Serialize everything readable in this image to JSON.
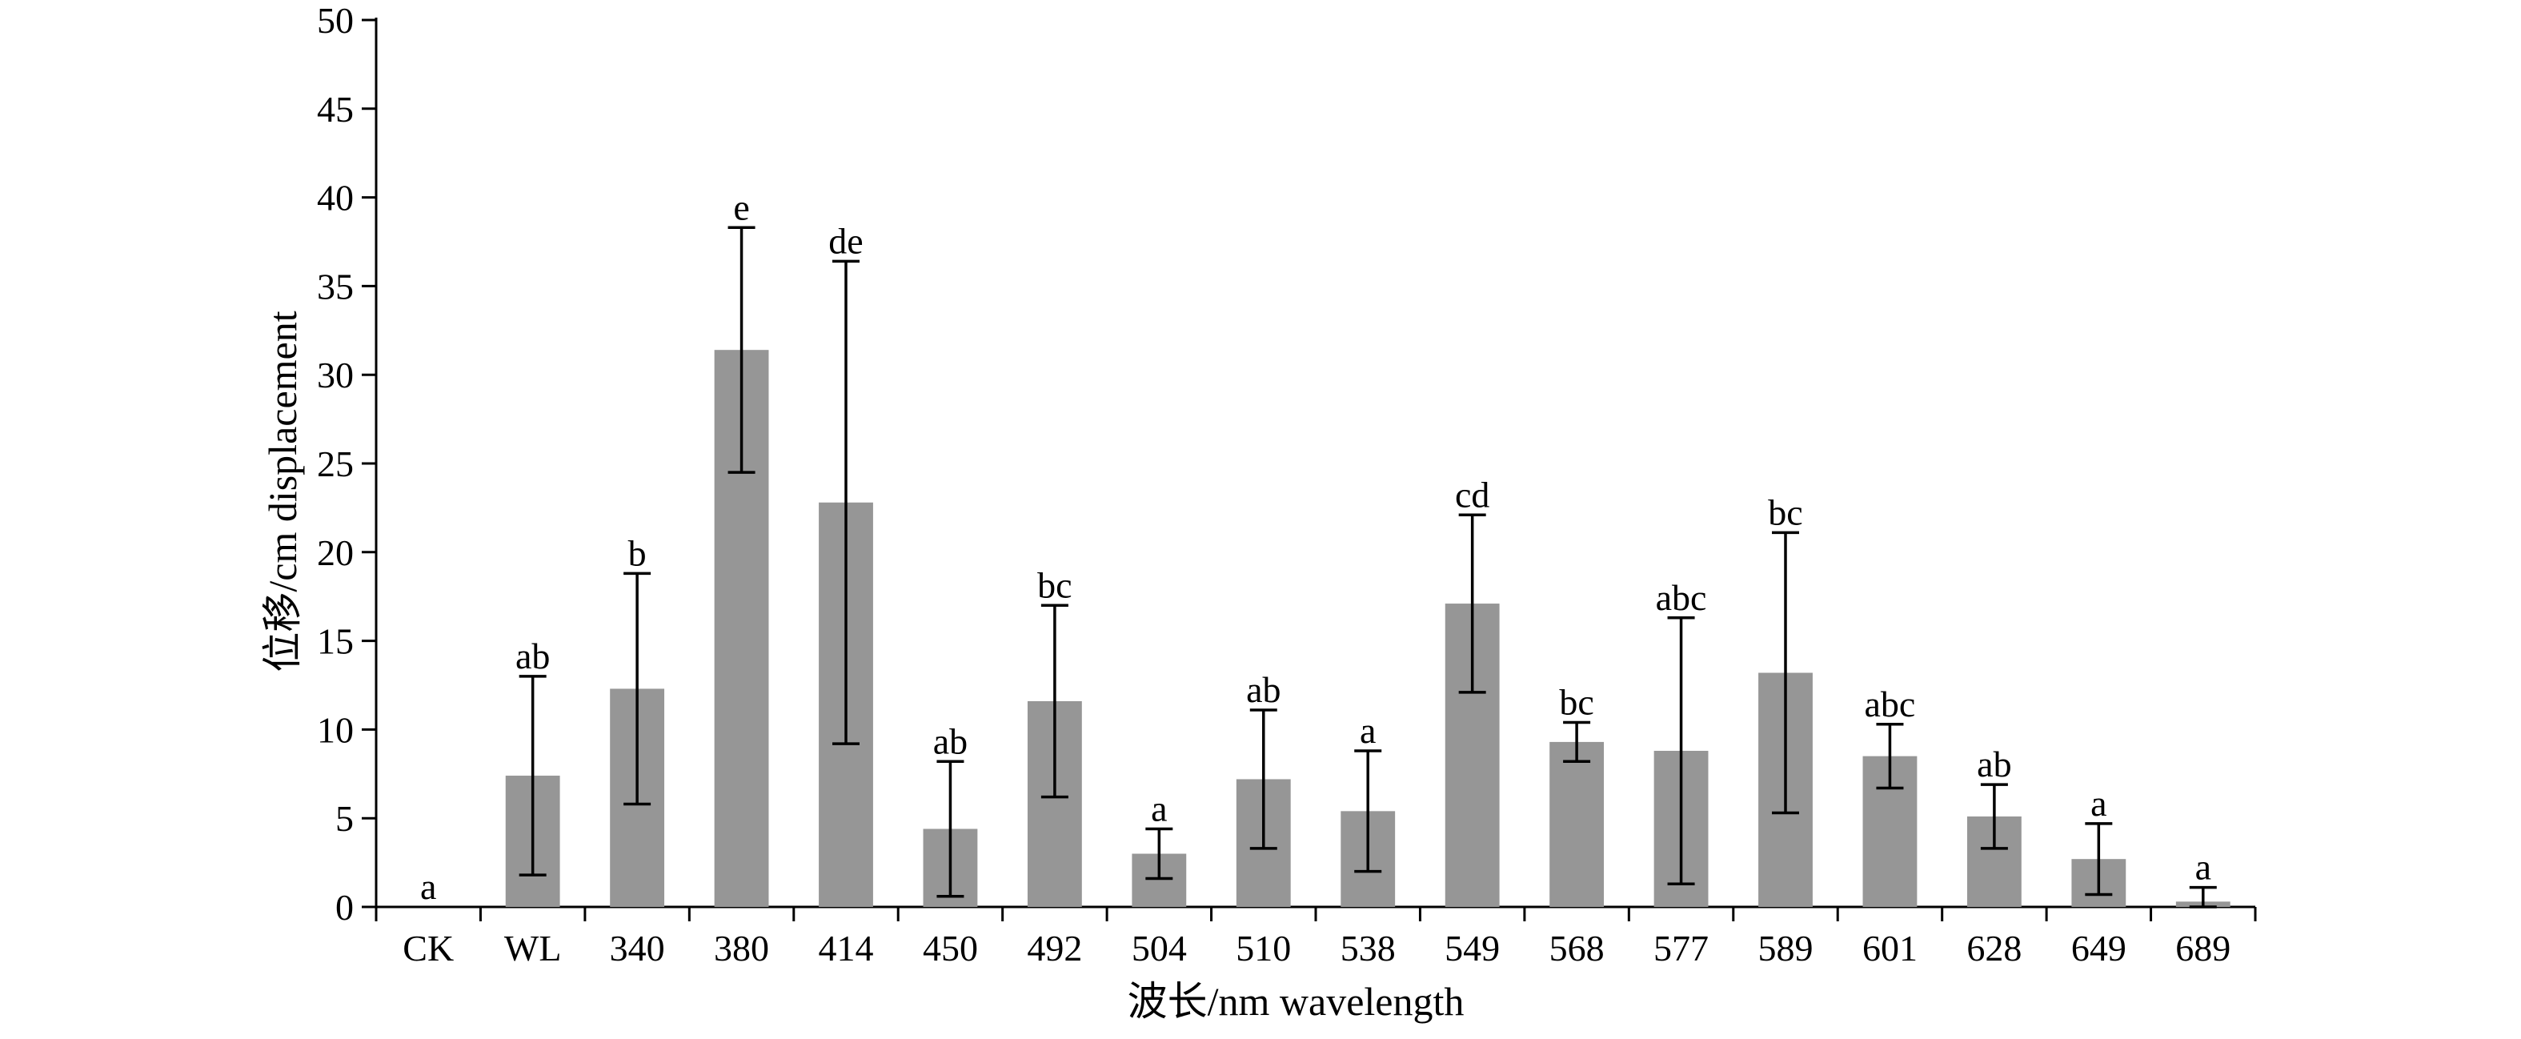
{
  "chart_data": {
    "type": "bar",
    "title": "",
    "xlabel": "波长/nm wavelength",
    "ylabel": "位移/cm displacement",
    "ylim": [
      0,
      50
    ],
    "yticks": [
      0,
      5,
      10,
      15,
      20,
      25,
      30,
      35,
      40,
      45,
      50
    ],
    "grid": false,
    "bar_color": "#969696",
    "categories": [
      "CK",
      "WL",
      "340",
      "380",
      "414",
      "450",
      "492",
      "504",
      "510",
      "538",
      "549",
      "568",
      "577",
      "589",
      "601",
      "628",
      "649",
      "689"
    ],
    "values": [
      0,
      7.4,
      12.3,
      31.4,
      22.8,
      4.4,
      11.6,
      3.0,
      7.2,
      5.4,
      17.1,
      9.3,
      8.8,
      13.2,
      8.5,
      5.1,
      2.7,
      0.3
    ],
    "error": [
      0,
      5.6,
      6.5,
      6.9,
      13.6,
      3.8,
      5.4,
      1.4,
      3.9,
      3.4,
      5.0,
      1.1,
      7.5,
      7.9,
      1.8,
      1.8,
      2.0,
      0.8
    ],
    "significance": [
      "a",
      "ab",
      "b",
      "e",
      "de",
      "ab",
      "bc",
      "a",
      "ab",
      "a",
      "cd",
      "bc",
      "abc",
      "bc",
      "abc",
      "ab",
      "a",
      "a"
    ]
  }
}
